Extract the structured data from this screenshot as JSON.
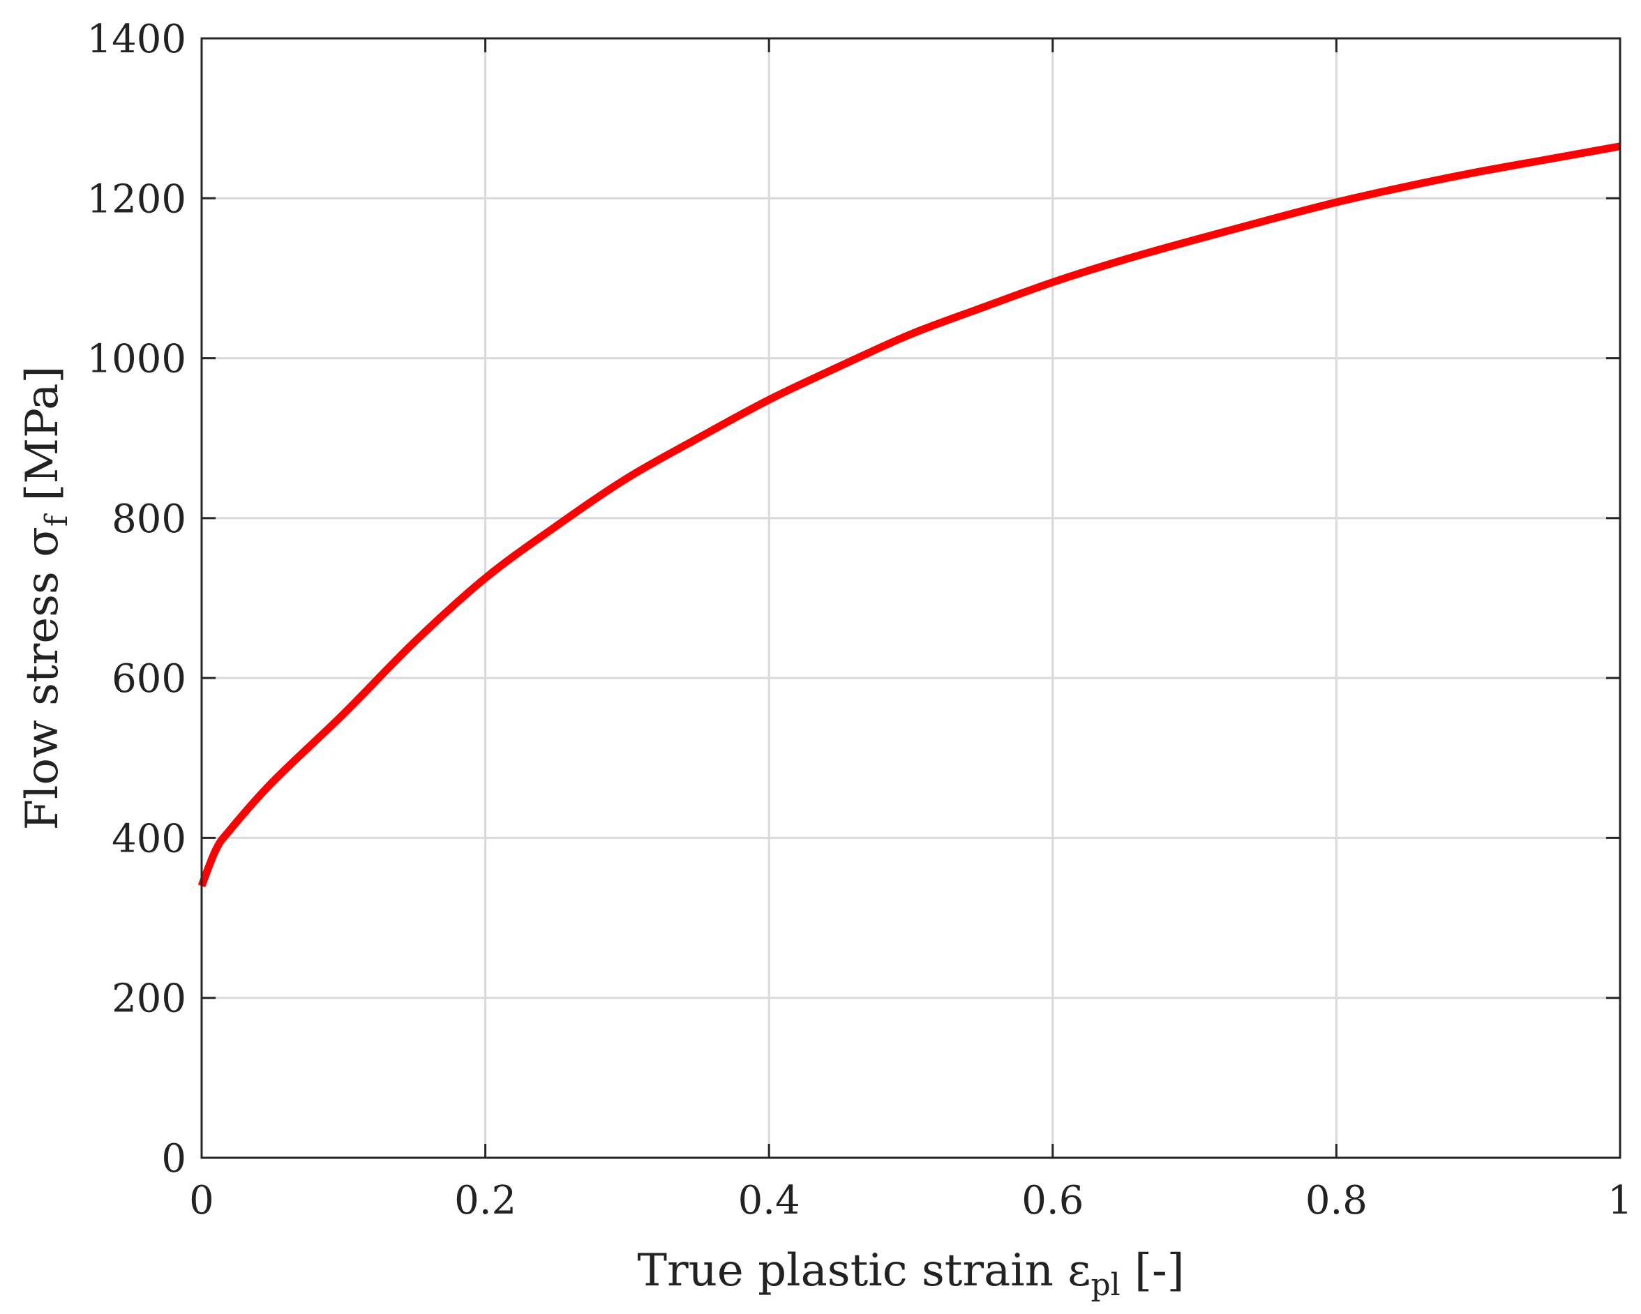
{
  "chart_data": {
    "type": "line",
    "xlabel": "True plastic strain ε",
    "xlabel_sub": "pl",
    "xlabel_suffix": " [-]",
    "ylabel": "Flow stress σ",
    "ylabel_sub": "f",
    "ylabel_suffix": " [MPa]",
    "xlim": [
      0,
      1
    ],
    "ylim": [
      0,
      1400
    ],
    "x_ticks": [
      0,
      0.2,
      0.4,
      0.6,
      0.8,
      1
    ],
    "x_tick_labels": [
      "0",
      "0.2",
      "0.4",
      "0.6",
      "0.8",
      "1"
    ],
    "y_ticks": [
      0,
      200,
      400,
      600,
      800,
      1000,
      1200,
      1400
    ],
    "y_tick_labels": [
      "0",
      "200",
      "400",
      "600",
      "800",
      "1000",
      "1200",
      "1400"
    ],
    "grid": true,
    "series": [
      {
        "color": "#ff0000",
        "x": [
          0,
          0.01,
          0.02,
          0.05,
          0.1,
          0.15,
          0.2,
          0.25,
          0.3,
          0.35,
          0.4,
          0.45,
          0.5,
          0.55,
          0.6,
          0.65,
          0.7,
          0.75,
          0.8,
          0.85,
          0.9,
          0.95,
          1.0
        ],
        "y": [
          340,
          385,
          410,
          470,
          555,
          645,
          725,
          790,
          850,
          900,
          948,
          990,
          1030,
          1063,
          1095,
          1123,
          1148,
          1172,
          1195,
          1215,
          1233,
          1249,
          1265
        ]
      }
    ]
  }
}
